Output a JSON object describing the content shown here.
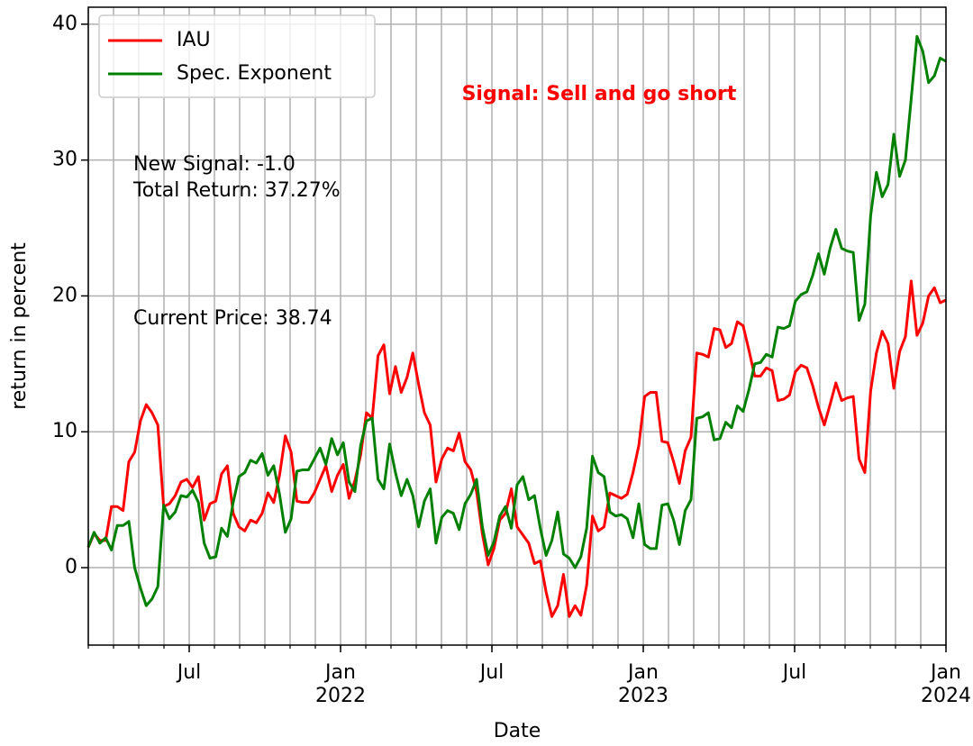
{
  "chart_data": {
    "type": "line",
    "xlabel": "Date",
    "ylabel": "return in percent",
    "signal": "Signal: Sell and go short",
    "annotations": [
      "New Signal: -1.0",
      "Total Return: 37.27%",
      "Current Price: 38.74"
    ],
    "xlim": [
      "2021-03",
      "2024-01"
    ],
    "xticks": [
      {
        "value": "2021-07",
        "label": "Jul"
      },
      {
        "value": "2022-01",
        "label": "Jan\n2022"
      },
      {
        "value": "2022-07",
        "label": "Jul"
      },
      {
        "value": "2023-01",
        "label": "Jan\n2023"
      },
      {
        "value": "2023-07",
        "label": "Jul"
      },
      {
        "value": "2024-01",
        "label": "Jan\n2024"
      }
    ],
    "xminorticks": [
      "2021-03",
      "2021-04",
      "2021-05",
      "2021-06",
      "2021-07",
      "2021-08",
      "2021-09",
      "2021-10",
      "2021-11",
      "2021-12",
      "2022-01",
      "2022-02",
      "2022-03",
      "2022-04",
      "2022-05",
      "2022-06",
      "2022-07",
      "2022-08",
      "2022-09",
      "2022-10",
      "2022-11",
      "2022-12",
      "2023-01",
      "2023-02",
      "2023-03",
      "2023-04",
      "2023-05",
      "2023-06",
      "2023-07",
      "2023-08",
      "2023-09",
      "2023-10",
      "2023-11",
      "2023-12",
      "2024-01"
    ],
    "ylim": [
      -5.7,
      41.25
    ],
    "yticks": [
      0,
      10,
      20,
      30,
      40
    ],
    "grid": true,
    "legend": "upper left",
    "series": [
      {
        "name": "IAU",
        "color": "#ff0000",
        "values": [
          1.5,
          2.5,
          2.0,
          2.0,
          4.5,
          4.5,
          4.2,
          7.8,
          8.5,
          10.8,
          12.0,
          11.4,
          10.5,
          4.5,
          4.7,
          5.3,
          6.3,
          6.5,
          5.9,
          6.7,
          3.5,
          4.7,
          4.9,
          6.9,
          7.5,
          4.0,
          3.0,
          2.7,
          3.5,
          3.3,
          4.0,
          5.5,
          4.8,
          6.8,
          9.7,
          8.5,
          4.9,
          4.8,
          4.8,
          5.5,
          6.5,
          7.5,
          5.6,
          6.8,
          7.6,
          5.1,
          6.4,
          8.3,
          11.4,
          11.0,
          15.6,
          16.4,
          12.8,
          14.8,
          12.9,
          14.0,
          15.8,
          13.5,
          11.4,
          10.5,
          6.3,
          8.0,
          8.8,
          8.6,
          9.9,
          7.8,
          7.2,
          5.6,
          2.5,
          0.2,
          1.4,
          3.5,
          4.0,
          5.8,
          3.0,
          2.4,
          1.8,
          0.3,
          0.5,
          -1.8,
          -3.6,
          -2.8,
          -0.5,
          -3.6,
          -2.8,
          -3.5,
          -1.3,
          3.8,
          2.7,
          3.0,
          5.5,
          5.3,
          5.1,
          5.4,
          7.0,
          9.0,
          12.6,
          12.9,
          12.9,
          9.3,
          9.2,
          7.8,
          6.2,
          8.6,
          9.6,
          15.8,
          15.7,
          15.5,
          17.6,
          17.5,
          16.2,
          16.5,
          18.1,
          17.8,
          16.0,
          14.1,
          14.1,
          14.7,
          14.5,
          12.3,
          12.4,
          12.7,
          14.4,
          14.9,
          14.7,
          13.4,
          11.8,
          10.5,
          12.0,
          13.6,
          12.3,
          12.5,
          12.6,
          8.0,
          7.0,
          13.0,
          15.8,
          17.4,
          16.5,
          13.2,
          15.9,
          17.0,
          21.1,
          17.1,
          18.0,
          20.0,
          20.6,
          19.5,
          19.7
        ]
      },
      {
        "name": "Spec. Exponent",
        "color": "#008000",
        "values": [
          1.5,
          2.6,
          1.8,
          2.2,
          1.3,
          3.1,
          3.1,
          3.4,
          0.0,
          -1.5,
          -2.8,
          -2.3,
          -1.4,
          4.6,
          3.6,
          4.1,
          5.3,
          5.2,
          5.7,
          4.8,
          1.8,
          0.7,
          0.8,
          2.9,
          2.3,
          4.8,
          6.7,
          7.0,
          7.9,
          7.7,
          8.4,
          6.8,
          7.5,
          5.4,
          2.6,
          3.6,
          7.1,
          7.2,
          7.2,
          8.0,
          8.8,
          7.6,
          9.5,
          8.3,
          9.2,
          6.3,
          5.6,
          9.0,
          10.8,
          11.0,
          6.5,
          5.8,
          9.1,
          7.0,
          5.3,
          6.5,
          5.3,
          3.0,
          4.9,
          5.8,
          1.8,
          3.7,
          4.2,
          4.0,
          2.8,
          4.7,
          5.4,
          6.5,
          3.0,
          0.9,
          1.9,
          3.8,
          4.5,
          2.9,
          6.1,
          6.7,
          5.0,
          5.3,
          2.9,
          0.9,
          2.0,
          4.1,
          1.0,
          0.7,
          0.0,
          0.8,
          2.9,
          8.2,
          7.0,
          6.7,
          4.1,
          3.8,
          3.9,
          3.6,
          2.2,
          4.7,
          1.7,
          1.4,
          1.4,
          4.6,
          4.7,
          3.5,
          1.7,
          4.2,
          5.0,
          11.0,
          11.1,
          11.4,
          9.4,
          9.5,
          10.7,
          10.3,
          11.9,
          11.5,
          13.1,
          15.0,
          15.1,
          15.7,
          15.5,
          17.7,
          17.6,
          17.8,
          19.6,
          20.1,
          20.3,
          21.5,
          23.1,
          21.6,
          23.5,
          24.9,
          23.5,
          23.3,
          23.2,
          18.2,
          19.4,
          25.9,
          29.1,
          27.3,
          28.2,
          31.9,
          28.8,
          30.0,
          34.5,
          39.1,
          38.0,
          35.7,
          36.2,
          37.5,
          37.27
        ]
      }
    ]
  }
}
